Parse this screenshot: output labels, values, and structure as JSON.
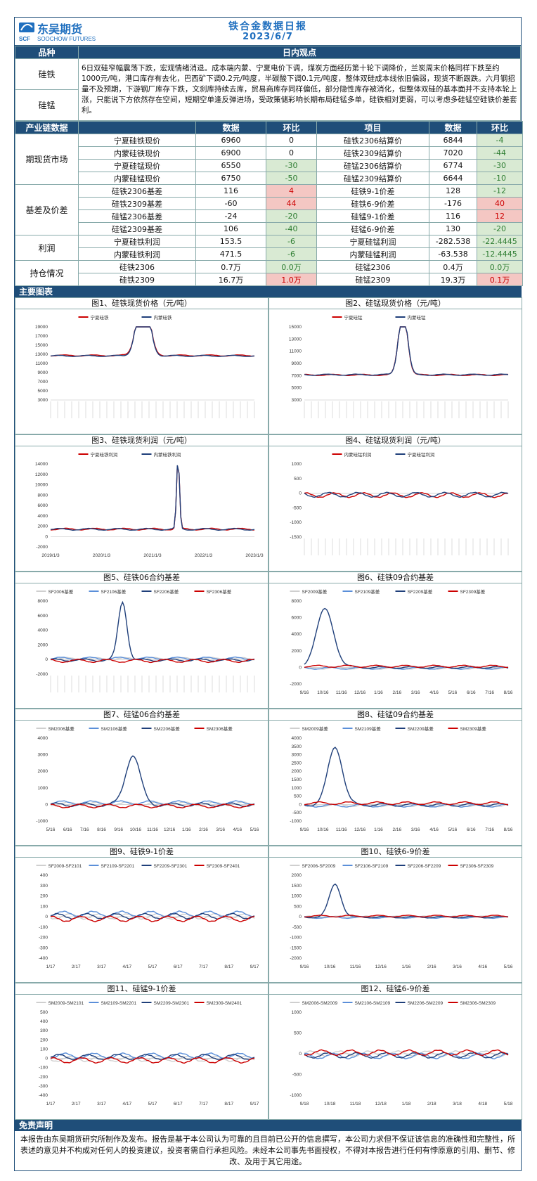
{
  "header": {
    "logo_cn": "东吴期货",
    "logo_en": "SOOCHOW FUTURES",
    "logo_mark": "SCF",
    "title": "铁合金数据日报",
    "date": "2023/6/7"
  },
  "view": {
    "col1": "品种",
    "col2": "日内观点",
    "rows": [
      "硅铁",
      "硅锰"
    ],
    "text": "6日双硅窄幅震荡下跌，宏观情绪消退。成本端内蒙、宁夏电价下调，煤炭方面经历第十轮下调降价，兰炭周末价格同样下跌至约1000元/吨，港口库存有去化，巴西矿下调0.2元/吨度，半碳酸下调0.1元/吨度，整体双硅成本线依旧偏弱，现货不断跟跌。六月钢招量不及预期，下游钢厂库存下跌，文刹库持续去库，贸易商库存同样偏低，部分隐性库存被消化，但整体双硅的基本面并不支持本轮上涨，只能说下方依然存在空间，短期空单逢反弹进场，受政策储彩响长期布局硅锰多单，硅铁相对更弱，可以考虑多硅锰空硅铁价差套利。"
  },
  "data_table": {
    "headers": [
      "产业链数据",
      "数据",
      "环比",
      "项目",
      "数据",
      "环比"
    ],
    "groups": [
      {
        "name": "期现货市场",
        "rows": [
          [
            "宁夏硅铁现价",
            "6960",
            "0",
            "",
            "硅铁2306结算价",
            "6844",
            "-4",
            "neg"
          ],
          [
            "内蒙硅铁现价",
            "6900",
            "0",
            "",
            "硅铁2309结算价",
            "7020",
            "-44",
            "neg"
          ],
          [
            "宁夏硅锰现价",
            "6550",
            "-30",
            "neg",
            "硅锰2306结算价",
            "6774",
            "-30",
            "neg"
          ],
          [
            "内蒙硅锰现价",
            "6750",
            "-50",
            "neg",
            "硅锰2309结算价",
            "6644",
            "-10",
            "neg"
          ]
        ]
      },
      {
        "name": "基差及价差",
        "rows": [
          [
            "硅铁2306基差",
            "116",
            "4",
            "pos",
            "硅铁9-1价差",
            "128",
            "-12",
            "neg"
          ],
          [
            "硅铁2309基差",
            "-60",
            "44",
            "pos",
            "硅铁6-9价差",
            "-176",
            "40",
            "pos"
          ],
          [
            "硅锰2306基差",
            "-24",
            "-20",
            "neg",
            "硅锰9-1价差",
            "116",
            "12",
            "pos"
          ],
          [
            "硅锰2309基差",
            "106",
            "-40",
            "neg",
            "硅锰6-9价差",
            "130",
            "-20",
            "neg"
          ]
        ]
      },
      {
        "name": "利润",
        "rows": [
          [
            "宁夏硅铁利润",
            "153.5",
            "-6",
            "neg",
            "宁夏硅锰利润",
            "-282.538",
            "-22.4445",
            "neg"
          ],
          [
            "内蒙硅铁利润",
            "471.5",
            "-6",
            "neg",
            "内蒙硅锰利润",
            "-63.538",
            "-12.4445",
            "neg"
          ]
        ]
      },
      {
        "name": "持仓情况",
        "rows": [
          [
            "硅铁2306",
            "0.7万",
            "0.0万",
            "neg",
            "硅锰2306",
            "0.4万",
            "0.0万",
            "neg"
          ],
          [
            "硅铁2309",
            "16.7万",
            "1.0万",
            "pos",
            "硅锰2309",
            "19.3万",
            "0.1万",
            "pos"
          ]
        ]
      }
    ]
  },
  "charts_bar": "主要图表",
  "charts": [
    {
      "title": "图1、硅铁现货价格（元/吨）",
      "legend": [
        "宁夏硅铁",
        "内蒙硅铁"
      ],
      "yticks": [
        "19000",
        "17000",
        "15000",
        "13000",
        "11000",
        "9000",
        "7000",
        "5000",
        "3000"
      ]
    },
    {
      "title": "图2、硅锰现货价格（元/吨）",
      "legend": [
        "宁夏硅锰",
        "内蒙硅锰"
      ],
      "yticks": [
        "15000",
        "13000",
        "11000",
        "9000",
        "7000",
        "5000",
        "3000"
      ]
    },
    {
      "title": "图3、硅铁现货利润（元/吨）",
      "legend": [
        "宁夏硅铁利润",
        "内蒙硅铁利润"
      ],
      "yticks": [
        "14000",
        "12000",
        "10000",
        "8000",
        "6000",
        "4000",
        "2000",
        "0",
        "-2000"
      ],
      "xticks": [
        "2019/1/3",
        "2020/1/3",
        "2021/1/3",
        "2022/1/3",
        "2023/1/3"
      ]
    },
    {
      "title": "图4、硅锰现货利润（元/吨）",
      "legend": [
        "内蒙硅锰利润",
        "宁夏硅锰利润"
      ],
      "yticks": [
        "1000",
        "500",
        "0",
        "-500",
        "-1000",
        "-1500"
      ]
    },
    {
      "title": "图5、硅铁06合约基差",
      "legend": [
        "SF2006基差",
        "SF2106基差",
        "SF2206基差",
        "SF2306基差"
      ],
      "yticks": [
        "8000",
        "6000",
        "4000",
        "2000",
        "0",
        "-2000"
      ]
    },
    {
      "title": "图6、硅铁09合约基差",
      "legend": [
        "SF2009基差",
        "SF2109基差",
        "SF2209基差",
        "SF2309基差"
      ],
      "yticks": [
        "8000",
        "6000",
        "4000",
        "2000",
        "0",
        "-2000"
      ],
      "xticks": [
        "9/16",
        "10/16",
        "11/16",
        "12/16",
        "1/16",
        "2/16",
        "3/16",
        "4/16",
        "5/16",
        "6/16",
        "7/16",
        "8/16"
      ]
    },
    {
      "title": "图7、硅锰06合约基差",
      "legend": [
        "SM2006基差",
        "SM2106基差",
        "SM2206基差",
        "SM2306基差"
      ],
      "yticks": [
        "4000",
        "3000",
        "2000",
        "1000",
        "0",
        "-1000"
      ],
      "xticks": [
        "5/16",
        "6/16",
        "7/16",
        "8/16",
        "9/16",
        "10/16",
        "11/16",
        "12/16",
        "1/16",
        "2/16",
        "3/16",
        "4/16",
        "5/16"
      ]
    },
    {
      "title": "图8、硅锰09合约基差",
      "legend": [
        "SM2009基差",
        "SM2109基差",
        "SM2209基差",
        "SM2309基差"
      ],
      "yticks": [
        "4000",
        "3500",
        "3000",
        "2500",
        "2000",
        "1500",
        "1000",
        "500",
        "0",
        "-500",
        "-1000"
      ],
      "xticks": [
        "9/16",
        "10/16",
        "11/16",
        "12/16",
        "1/16",
        "2/16",
        "3/16",
        "4/16",
        "5/16",
        "6/16",
        "7/16",
        "8/16"
      ]
    },
    {
      "title": "图9、硅铁9-1价差",
      "legend": [
        "SF2009-SF2101",
        "SF2109-SF2201",
        "SF2209-SF2301",
        "SF2309-SF2401"
      ],
      "yticks": [
        "400",
        "300",
        "200",
        "100",
        "0",
        "-100",
        "-200",
        "-300",
        "-400"
      ],
      "xticks": [
        "1/17",
        "2/17",
        "3/17",
        "4/17",
        "5/17",
        "6/17",
        "7/17",
        "8/17",
        "9/17"
      ]
    },
    {
      "title": "图10、硅铁6-9价差",
      "legend": [
        "SF2006-SF2009",
        "SF2106-SF2109",
        "SF2206-SF2209",
        "SF2306-SF2309"
      ],
      "yticks": [
        "2000",
        "1500",
        "1000",
        "500",
        "0",
        "-500",
        "-1000",
        "-1500",
        "-2000"
      ],
      "xticks": [
        "9/16",
        "10/16",
        "11/16",
        "12/16",
        "1/16",
        "2/16",
        "3/16",
        "4/16",
        "5/16"
      ]
    },
    {
      "title": "图11、硅锰9-1价差",
      "legend": [
        "SM2009-SM2101",
        "SM2109-SM2201",
        "SM2209-SM2301",
        "SM2309-SM2401"
      ],
      "yticks": [
        "500",
        "400",
        "300",
        "200",
        "100",
        "0",
        "-100",
        "-200",
        "-300",
        "-400"
      ],
      "xticks": [
        "1/17",
        "2/17",
        "3/17",
        "4/17",
        "5/17",
        "6/17",
        "7/17",
        "8/17",
        "9/17"
      ]
    },
    {
      "title": "图12、硅锰6-9价差",
      "legend": [
        "SM2006-SM2009",
        "SM2106-SM2109",
        "SM2206-SM2209",
        "SM2306-SM2309"
      ],
      "yticks": [
        "1000",
        "500",
        "0",
        "-500",
        "-1000"
      ],
      "xticks": [
        "9/18",
        "10/18",
        "11/18",
        "12/18",
        "1/18",
        "2/18",
        "3/18",
        "4/18",
        "5/18"
      ]
    }
  ],
  "disclaimer": {
    "title": "免责声明",
    "text": "本报告由东吴期货研究所制作及发布。报告是基于本公司认为可靠的且目前已公开的信息撰写，本公司力求但不保证该信息的准确性和完整性，所表述的意见并不构成对任何人的投资建议，投资者需自行承担风险。未经本公司事先书面授权，不得对本报告进行任何有悖原意的引用、删节、修改、及用于其它用途。"
  },
  "colors": {
    "primary": "#1f4e79",
    "red": "#cc0000",
    "navy": "#1f3f7a",
    "light": "#cfcfcf",
    "blue": "#5b8fd9"
  }
}
